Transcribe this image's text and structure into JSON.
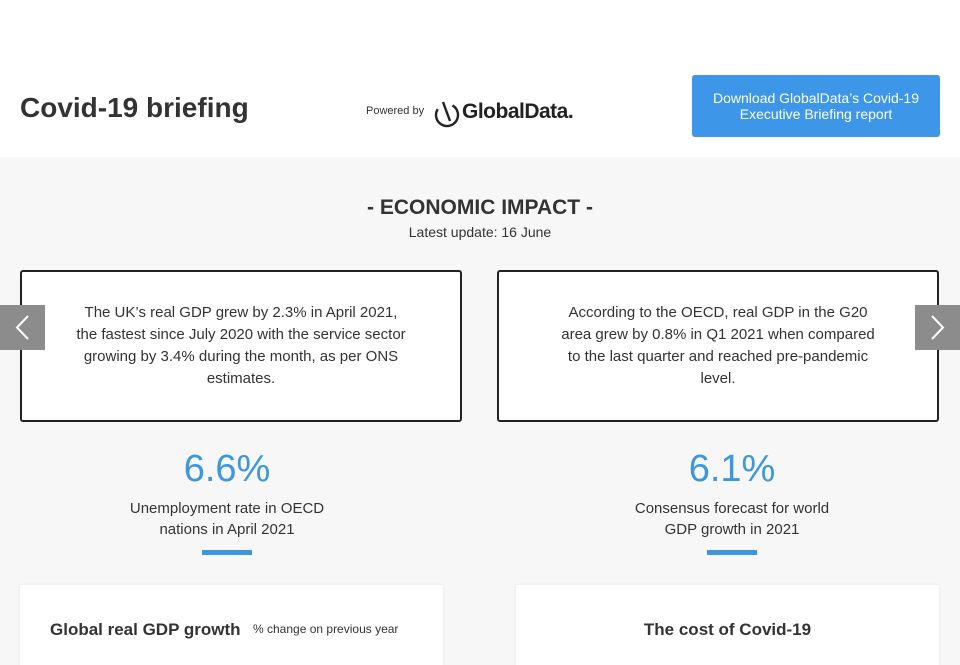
{
  "header": {
    "title": "Covid-19 briefing",
    "powered_by": "Powered by",
    "logo": "GlobalData.",
    "button": "Download GlobalData’s Covid-19 Executive Briefing report"
  },
  "section": {
    "title": "- ECONOMIC IMPACT -",
    "update": "Latest update: 16 June"
  },
  "slides": [
    {
      "text": "The UK’s real GDP grew by 2.3% in April 2021, the fastest since July 2020 with the service sector growing by 3.4% during the month, as per ONS estimates."
    },
    {
      "text": "According to the OECD, real GDP in the G20 area grew by 0.8% in Q1 2021 when compared to the last quarter and reached pre-pandemic level."
    }
  ],
  "stats": [
    {
      "value": "6.6%",
      "label": "Unemployment rate in OECD nations in April 2021"
    },
    {
      "value": "6.1%",
      "label": "Consensus forecast for world GDP growth in 2021"
    }
  ],
  "cards": [
    {
      "title": "Global real GDP growth",
      "subtitle": "% change on previous year"
    },
    {
      "title": "The cost of Covid-19"
    }
  ]
}
